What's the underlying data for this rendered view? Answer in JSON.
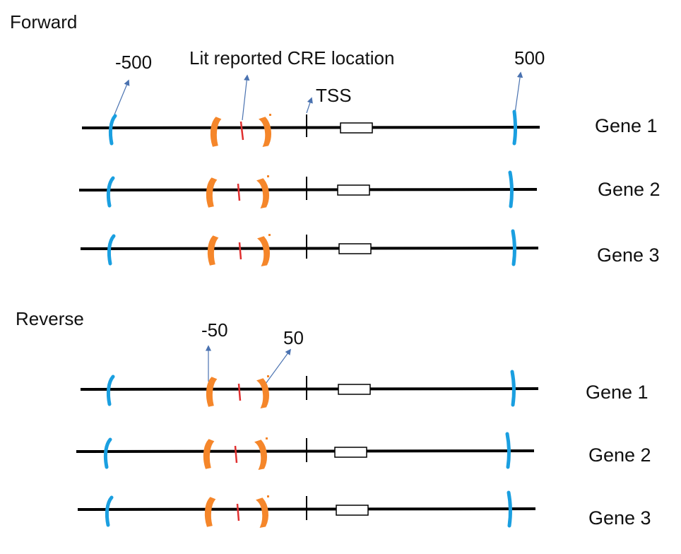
{
  "sections": [
    {
      "title": "Forward",
      "annotations": {
        "left_marker": "-500",
        "cre_label": "Lit reported CRE location",
        "tss_label": "TSS",
        "right_marker": "500"
      },
      "genes": [
        "Gene 1",
        "Gene 2",
        "Gene 3"
      ]
    },
    {
      "title": "Reverse",
      "annotations": {
        "left_flank": "-50",
        "right_flank": "50"
      },
      "genes": [
        "Gene 1",
        "Gene 2",
        "Gene 3"
      ]
    }
  ],
  "colors": {
    "line": "#000000",
    "boundary_marker": "#1a9fe0",
    "flank_marker": "#f5862a",
    "cre_marker": "#e03030",
    "arrow": "#4a72b0"
  },
  "icons": {
    "boundary": "blue-bracket-icon",
    "flank": "orange-bracket-icon",
    "cre": "red-tick-icon",
    "tss": "tss-tick-icon",
    "gene_body": "gene-box-icon"
  }
}
